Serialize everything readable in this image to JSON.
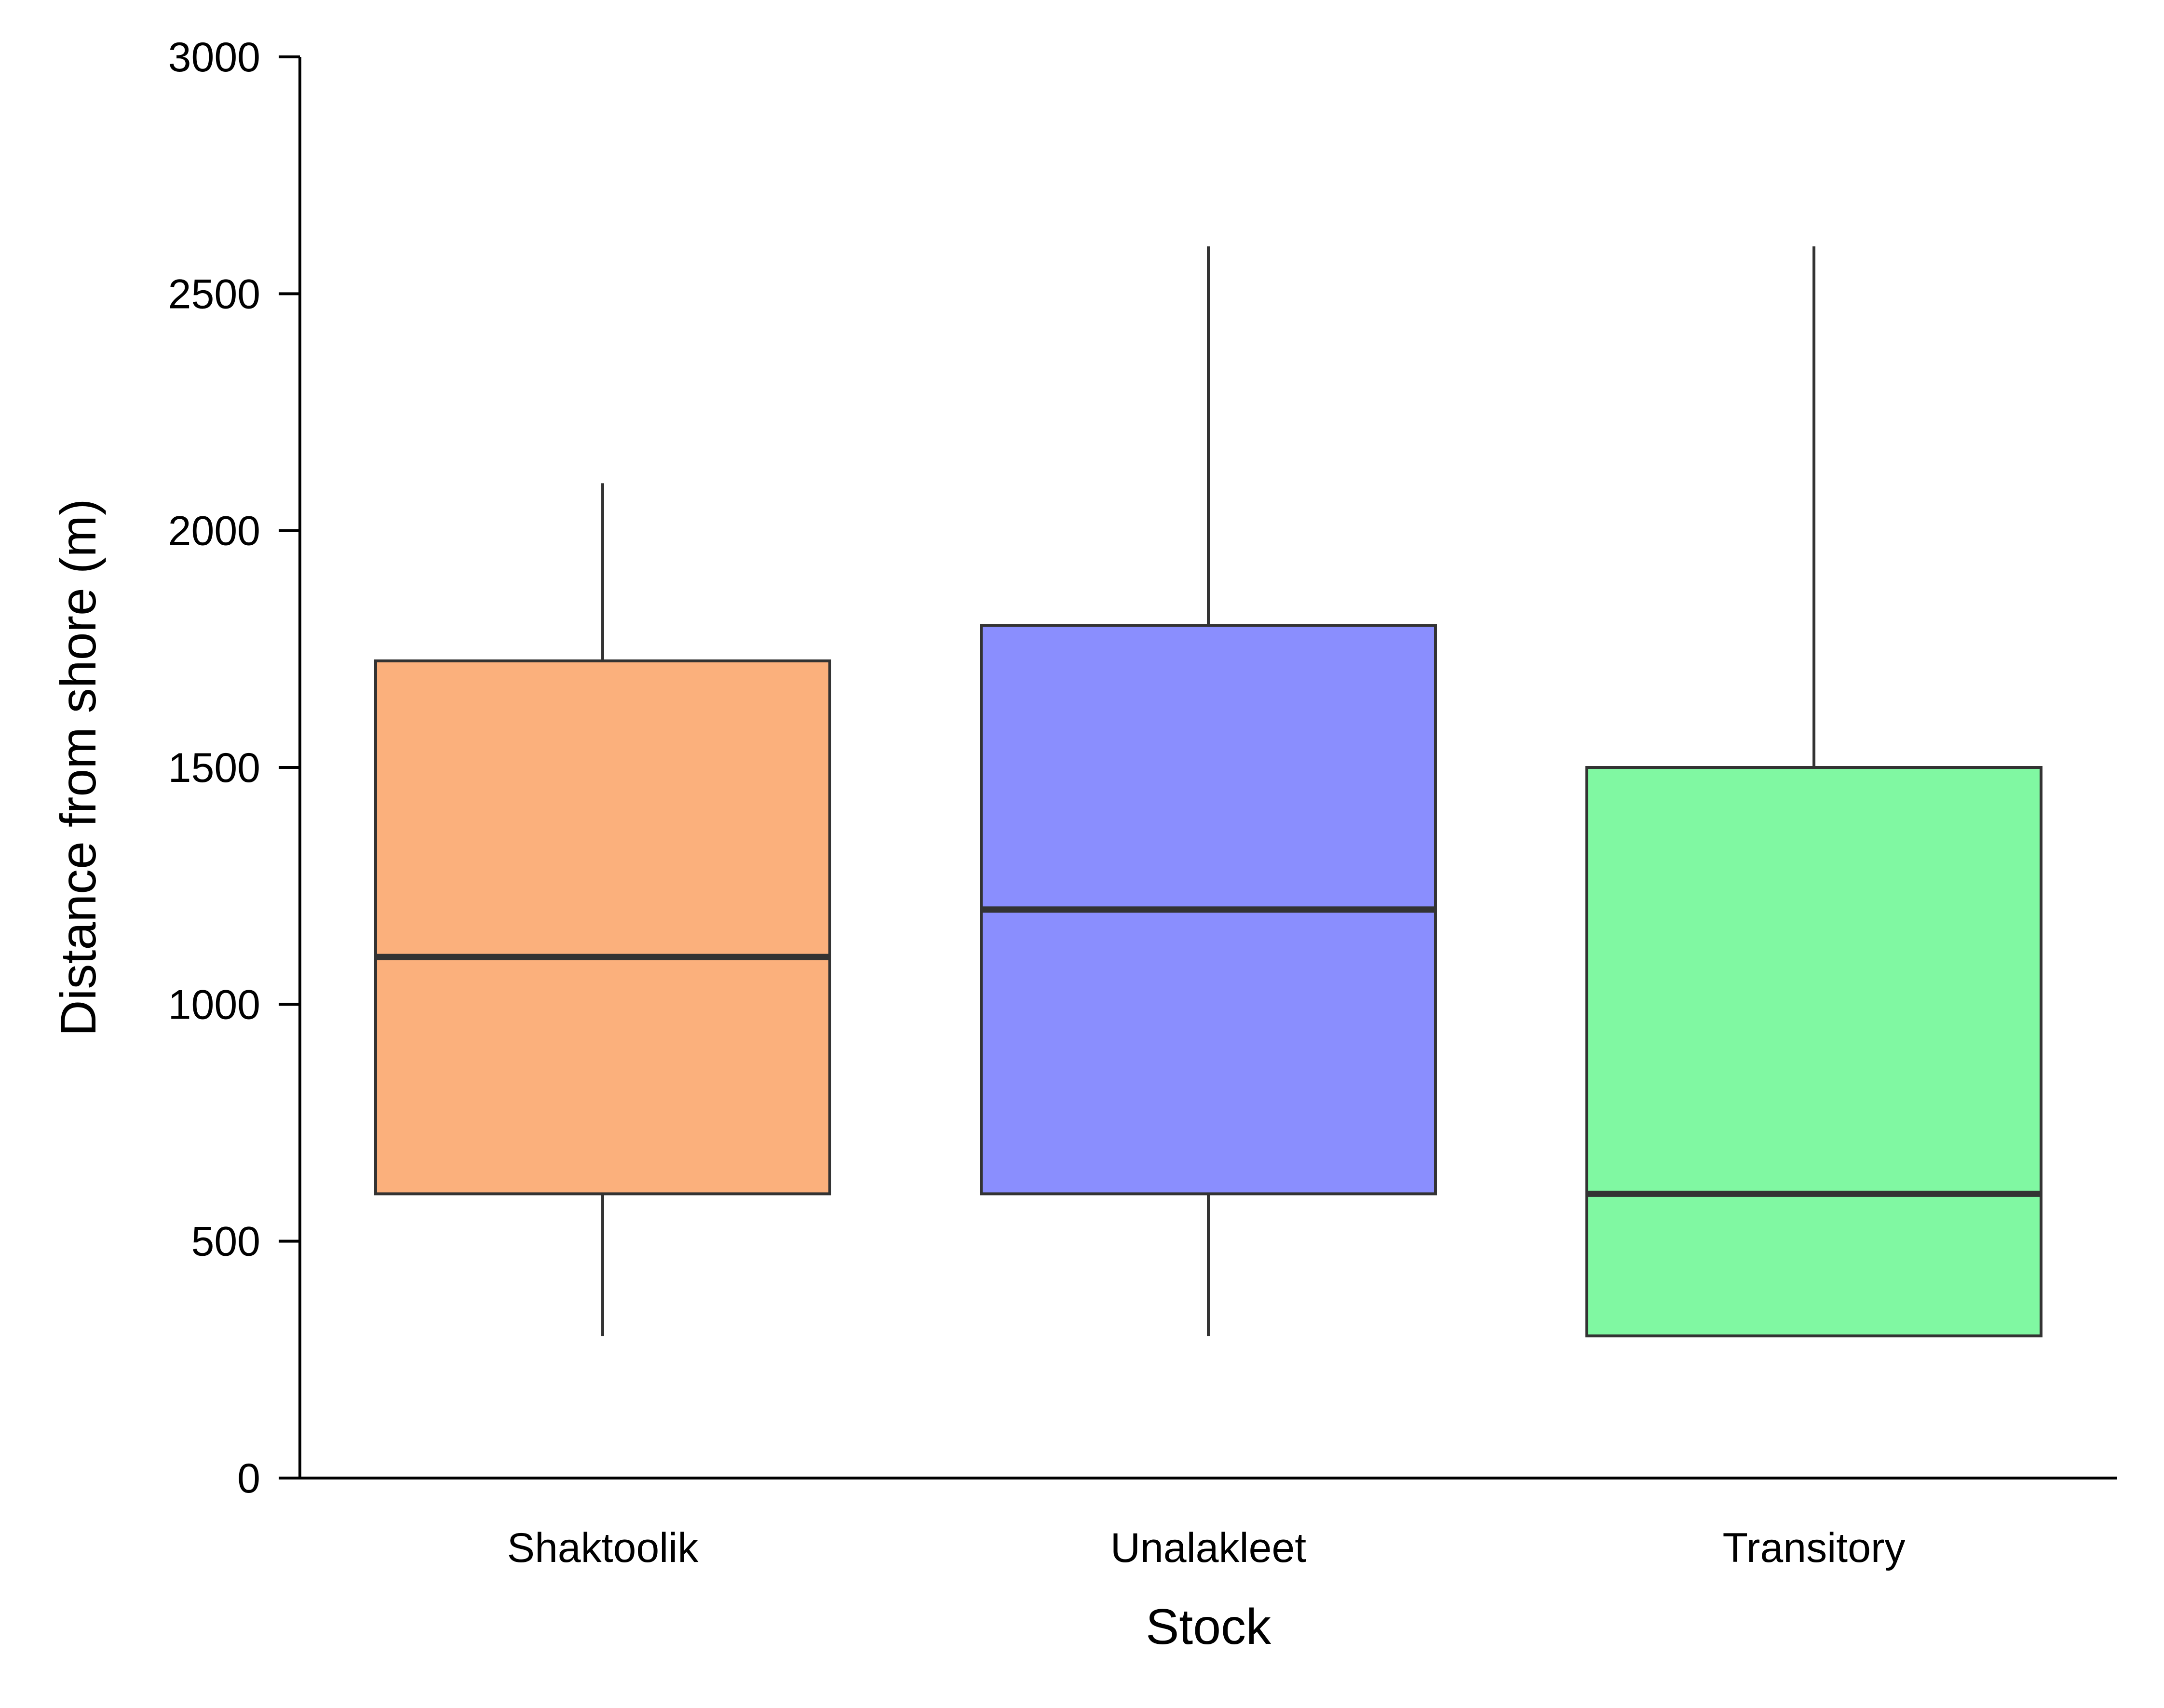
{
  "chart_data": {
    "type": "box",
    "title": "",
    "xlabel": "Stock",
    "ylabel": "Distance from shore (m)",
    "ylim": [
      0,
      3000
    ],
    "yticks": [
      0,
      500,
      1000,
      1500,
      2000,
      2500,
      3000
    ],
    "grid": false,
    "legend": "none",
    "categories": [
      "Shaktoolik",
      "Unalakleet",
      "Transitory"
    ],
    "boxes": [
      {
        "category": "Shaktoolik",
        "whisker_low": 300,
        "q1": 600,
        "median": 1100,
        "q3": 1725,
        "whisker_high": 2100,
        "color": "#fbb07c"
      },
      {
        "category": "Unalakleet",
        "whisker_low": 300,
        "q1": 600,
        "median": 1200,
        "q3": 1800,
        "whisker_high": 2600,
        "color": "#8a8efe"
      },
      {
        "category": "Transitory",
        "whisker_low": 300,
        "q1": 300,
        "median": 600,
        "q3": 1500,
        "whisker_high": 2600,
        "color": "#80f8a2"
      }
    ]
  }
}
